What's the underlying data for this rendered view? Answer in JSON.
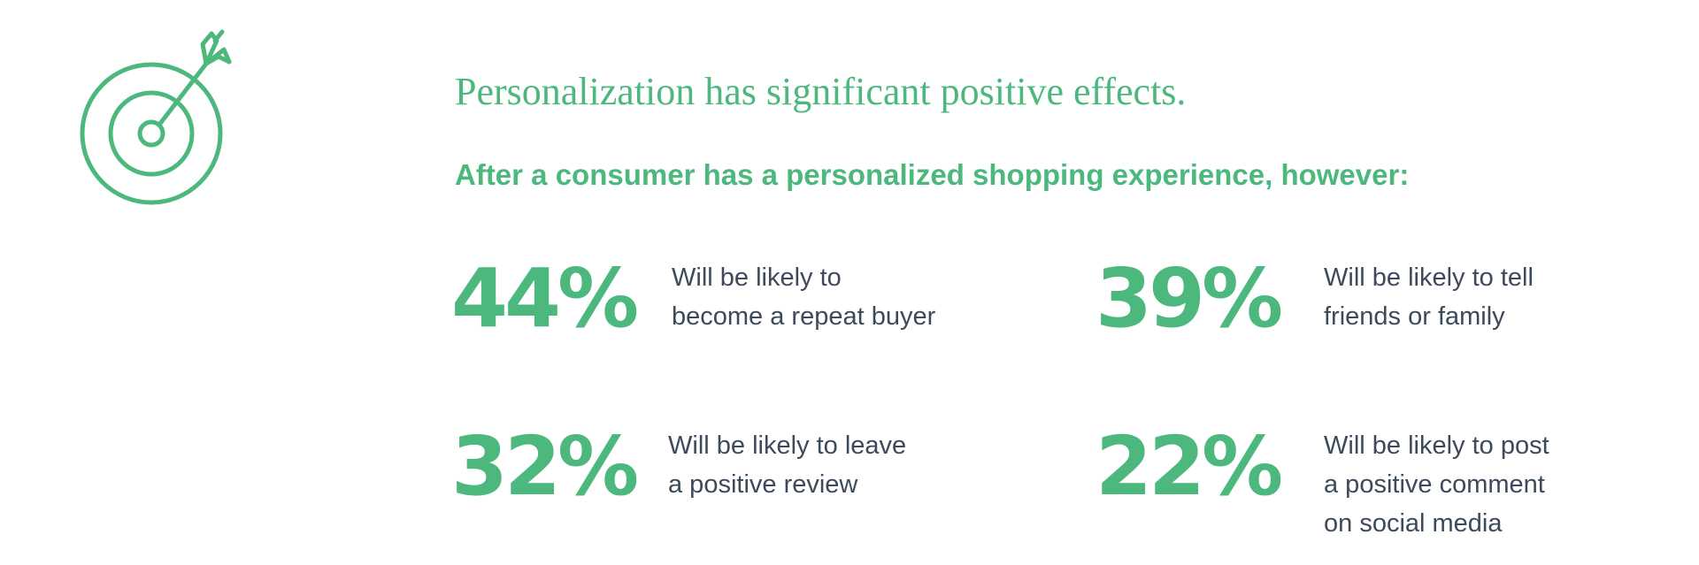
{
  "colors": {
    "accent": "#4cb87e",
    "text": "#3d4a5c"
  },
  "icon": "target-with-arrow-icon",
  "title": "Personalization has significant positive effects.",
  "subtitle": "After a consumer has a personalized shopping experience, however:",
  "stats": [
    {
      "value": "44%",
      "lines": [
        "Will be likely to",
        "become a repeat buyer"
      ]
    },
    {
      "value": "39%",
      "lines": [
        "Will be likely to tell",
        "friends or family"
      ]
    },
    {
      "value": "32%",
      "lines": [
        "Will be likely to leave",
        "a positive review"
      ]
    },
    {
      "value": "22%",
      "lines": [
        "Will be likely to post",
        "a positive comment",
        "on social media"
      ]
    }
  ]
}
